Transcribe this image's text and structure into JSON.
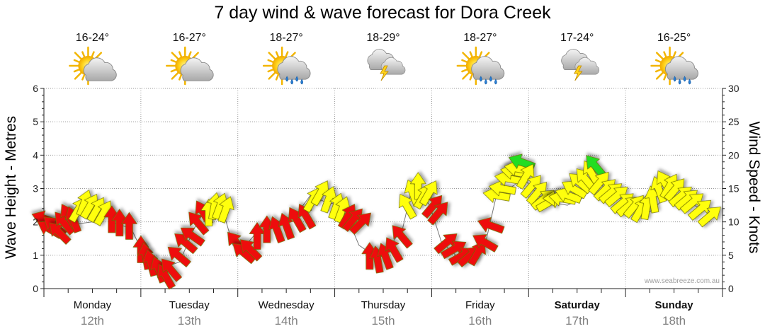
{
  "chart_data": {
    "type": "line",
    "title": "7 day wind & wave forecast for Dora Creek",
    "ylabel": "Wave Height - Metres",
    "y2label": "Wind Speed - Knots",
    "ylim": [
      0,
      6
    ],
    "y2lim": [
      0,
      30
    ],
    "yticks": [
      "0",
      "1",
      "2",
      "3",
      "4",
      "5",
      "6"
    ],
    "y2ticks": [
      "0",
      "5",
      "10",
      "15",
      "20",
      "25",
      "30"
    ],
    "watermark": "www.seabreeze.com.au",
    "grid": true,
    "days": [
      {
        "name": "Monday",
        "date": "12th",
        "temp": "16-24°",
        "icon": "sun-cloud-icon",
        "bold": false
      },
      {
        "name": "Tuesday",
        "date": "13th",
        "temp": "16-27°",
        "icon": "sun-cloud-icon",
        "bold": false
      },
      {
        "name": "Wednesday",
        "date": "14th",
        "temp": "18-27°",
        "icon": "sun-rain-icon",
        "bold": false
      },
      {
        "name": "Thursday",
        "date": "15th",
        "temp": "18-29°",
        "icon": "storm-icon",
        "bold": false
      },
      {
        "name": "Friday",
        "date": "16th",
        "temp": "18-27°",
        "icon": "sun-rain-icon",
        "bold": false
      },
      {
        "name": "Saturday",
        "date": "17th",
        "temp": "17-24°",
        "icon": "storm-icon",
        "bold": true
      },
      {
        "name": "Sunday",
        "date": "18th",
        "temp": "16-25°",
        "icon": "sun-rain-icon",
        "bold": true
      }
    ],
    "series": [
      {
        "kind": "wind-arrows",
        "color_scale": {
          "red": "#ee1111",
          "yellow": "#ffff11",
          "green": "#22dd22"
        },
        "points": [
          {
            "t": 0.0,
            "kn": 10.5,
            "dir": 200,
            "c": "red"
          },
          {
            "t": 0.05,
            "kn": 9.0,
            "dir": 210,
            "c": "red"
          },
          {
            "t": 0.1,
            "kn": 9.5,
            "dir": 220,
            "c": "red"
          },
          {
            "t": 0.15,
            "kn": 8.5,
            "dir": 225,
            "c": "red"
          },
          {
            "t": 0.2,
            "kn": 10.0,
            "dir": 230,
            "c": "red"
          },
          {
            "t": 0.25,
            "kn": 11.0,
            "dir": 240,
            "c": "red"
          },
          {
            "t": 0.3,
            "kn": 10.5,
            "dir": 250,
            "c": "red"
          },
          {
            "t": 0.36,
            "kn": 12.0,
            "dir": 300,
            "c": "yellow"
          },
          {
            "t": 0.42,
            "kn": 13.0,
            "dir": 290,
            "c": "yellow"
          },
          {
            "t": 0.48,
            "kn": 12.5,
            "dir": 300,
            "c": "yellow"
          },
          {
            "t": 0.55,
            "kn": 12.0,
            "dir": 300,
            "c": "yellow"
          },
          {
            "t": 0.62,
            "kn": 11.5,
            "dir": 300,
            "c": "yellow"
          },
          {
            "t": 0.7,
            "kn": 10.5,
            "dir": 270,
            "c": "red"
          },
          {
            "t": 0.78,
            "kn": 10.0,
            "dir": 270,
            "c": "red"
          },
          {
            "t": 0.88,
            "kn": 9.5,
            "dir": 270,
            "c": "red"
          },
          {
            "t": 1.0,
            "kn": 6.0,
            "dir": 270,
            "c": "red"
          },
          {
            "t": 1.05,
            "kn": 5.0,
            "dir": 260,
            "c": "red"
          },
          {
            "t": 1.1,
            "kn": 4.0,
            "dir": 255,
            "c": "red"
          },
          {
            "t": 1.18,
            "kn": 3.0,
            "dir": 250,
            "c": "red"
          },
          {
            "t": 1.25,
            "kn": 2.0,
            "dir": 240,
            "c": "red"
          },
          {
            "t": 1.3,
            "kn": 3.0,
            "dir": 230,
            "c": "red"
          },
          {
            "t": 1.38,
            "kn": 5.0,
            "dir": 220,
            "c": "red"
          },
          {
            "t": 1.45,
            "kn": 7.0,
            "dir": 220,
            "c": "red"
          },
          {
            "t": 1.52,
            "kn": 8.0,
            "dir": 215,
            "c": "red"
          },
          {
            "t": 1.58,
            "kn": 10.0,
            "dir": 230,
            "c": "red"
          },
          {
            "t": 1.64,
            "kn": 11.5,
            "dir": 240,
            "c": "red"
          },
          {
            "t": 1.7,
            "kn": 11.5,
            "dir": 270,
            "c": "yellow"
          },
          {
            "t": 1.76,
            "kn": 12.5,
            "dir": 280,
            "c": "yellow"
          },
          {
            "t": 1.82,
            "kn": 12.5,
            "dir": 290,
            "c": "yellow"
          },
          {
            "t": 1.88,
            "kn": 12.0,
            "dir": 290,
            "c": "yellow"
          },
          {
            "t": 1.98,
            "kn": 7.0,
            "dir": 230,
            "c": "red"
          },
          {
            "t": 2.05,
            "kn": 5.5,
            "dir": 220,
            "c": "red"
          },
          {
            "t": 2.12,
            "kn": 6.0,
            "dir": 225,
            "c": "red"
          },
          {
            "t": 2.2,
            "kn": 8.0,
            "dir": 270,
            "c": "red"
          },
          {
            "t": 2.3,
            "kn": 9.0,
            "dir": 270,
            "c": "red"
          },
          {
            "t": 2.4,
            "kn": 9.0,
            "dir": 250,
            "c": "red"
          },
          {
            "t": 2.5,
            "kn": 9.5,
            "dir": 250,
            "c": "red"
          },
          {
            "t": 2.6,
            "kn": 10.5,
            "dir": 240,
            "c": "red"
          },
          {
            "t": 2.7,
            "kn": 11.0,
            "dir": 240,
            "c": "red"
          },
          {
            "t": 2.78,
            "kn": 13.5,
            "dir": 300,
            "c": "yellow"
          },
          {
            "t": 2.86,
            "kn": 14.5,
            "dir": 300,
            "c": "yellow"
          },
          {
            "t": 2.94,
            "kn": 13.5,
            "dir": 290,
            "c": "yellow"
          },
          {
            "t": 3.02,
            "kn": 12.5,
            "dir": 290,
            "c": "yellow"
          },
          {
            "t": 3.08,
            "kn": 12.0,
            "dir": 290,
            "c": "yellow"
          },
          {
            "t": 3.14,
            "kn": 11.0,
            "dir": 300,
            "c": "red"
          },
          {
            "t": 3.2,
            "kn": 10.5,
            "dir": 310,
            "c": "red"
          },
          {
            "t": 3.28,
            "kn": 10.0,
            "dir": 315,
            "c": "red"
          },
          {
            "t": 3.36,
            "kn": 5.0,
            "dir": 270,
            "c": "red"
          },
          {
            "t": 3.44,
            "kn": 4.5,
            "dir": 260,
            "c": "red"
          },
          {
            "t": 3.52,
            "kn": 5.0,
            "dir": 250,
            "c": "red"
          },
          {
            "t": 3.6,
            "kn": 6.0,
            "dir": 240,
            "c": "red"
          },
          {
            "t": 3.68,
            "kn": 8.0,
            "dir": 230,
            "c": "red"
          },
          {
            "t": 3.74,
            "kn": 12.5,
            "dir": 240,
            "c": "yellow"
          },
          {
            "t": 3.8,
            "kn": 14.5,
            "dir": 250,
            "c": "yellow"
          },
          {
            "t": 3.86,
            "kn": 15.5,
            "dir": 270,
            "c": "yellow"
          },
          {
            "t": 3.92,
            "kn": 14.0,
            "dir": 300,
            "c": "yellow"
          },
          {
            "t": 3.98,
            "kn": 14.5,
            "dir": 300,
            "c": "yellow"
          },
          {
            "t": 4.02,
            "kn": 12.5,
            "dir": 310,
            "c": "red"
          },
          {
            "t": 4.08,
            "kn": 11.5,
            "dir": 310,
            "c": "red"
          },
          {
            "t": 4.16,
            "kn": 7.0,
            "dir": 320,
            "c": "red"
          },
          {
            "t": 4.24,
            "kn": 6.0,
            "dir": 330,
            "c": "red"
          },
          {
            "t": 4.32,
            "kn": 5.0,
            "dir": 330,
            "c": "red"
          },
          {
            "t": 4.4,
            "kn": 5.0,
            "dir": 320,
            "c": "red"
          },
          {
            "t": 4.48,
            "kn": 5.5,
            "dir": 300,
            "c": "red"
          },
          {
            "t": 4.54,
            "kn": 7.0,
            "dir": 210,
            "c": "red"
          },
          {
            "t": 4.6,
            "kn": 9.5,
            "dir": 200,
            "c": "red"
          },
          {
            "t": 4.66,
            "kn": 14.0,
            "dir": 190,
            "c": "yellow"
          },
          {
            "t": 4.72,
            "kn": 15.0,
            "dir": 190,
            "c": "yellow"
          },
          {
            "t": 4.78,
            "kn": 16.5,
            "dir": 190,
            "c": "yellow"
          },
          {
            "t": 4.84,
            "kn": 17.5,
            "dir": 190,
            "c": "yellow"
          },
          {
            "t": 4.88,
            "kn": 18.0,
            "dir": 190,
            "c": "yellow"
          },
          {
            "t": 4.92,
            "kn": 19.0,
            "dir": 200,
            "c": "green"
          },
          {
            "t": 4.98,
            "kn": 17.0,
            "dir": 300,
            "c": "yellow"
          },
          {
            "t": 5.04,
            "kn": 15.5,
            "dir": 310,
            "c": "yellow"
          },
          {
            "t": 5.1,
            "kn": 14.5,
            "dir": 310,
            "c": "yellow"
          },
          {
            "t": 5.16,
            "kn": 13.5,
            "dir": 320,
            "c": "yellow"
          },
          {
            "t": 5.22,
            "kn": 13.0,
            "dir": 330,
            "c": "yellow"
          },
          {
            "t": 5.28,
            "kn": 13.5,
            "dir": 180,
            "c": "yellow"
          },
          {
            "t": 5.34,
            "kn": 13.5,
            "dir": 190,
            "c": "yellow"
          },
          {
            "t": 5.4,
            "kn": 14.0,
            "dir": 200,
            "c": "yellow"
          },
          {
            "t": 5.46,
            "kn": 15.0,
            "dir": 210,
            "c": "yellow"
          },
          {
            "t": 5.52,
            "kn": 16.0,
            "dir": 220,
            "c": "yellow"
          },
          {
            "t": 5.58,
            "kn": 16.5,
            "dir": 230,
            "c": "yellow"
          },
          {
            "t": 5.64,
            "kn": 17.5,
            "dir": 240,
            "c": "yellow"
          },
          {
            "t": 5.68,
            "kn": 18.5,
            "dir": 230,
            "c": "green"
          },
          {
            "t": 5.74,
            "kn": 16.0,
            "dir": 310,
            "c": "yellow"
          },
          {
            "t": 5.8,
            "kn": 15.0,
            "dir": 315,
            "c": "yellow"
          },
          {
            "t": 5.86,
            "kn": 14.5,
            "dir": 320,
            "c": "yellow"
          },
          {
            "t": 5.92,
            "kn": 14.0,
            "dir": 320,
            "c": "yellow"
          },
          {
            "t": 5.98,
            "kn": 13.0,
            "dir": 320,
            "c": "yellow"
          },
          {
            "t": 6.04,
            "kn": 12.5,
            "dir": 320,
            "c": "yellow"
          },
          {
            "t": 6.1,
            "kn": 12.5,
            "dir": 310,
            "c": "yellow"
          },
          {
            "t": 6.16,
            "kn": 12.0,
            "dir": 300,
            "c": "yellow"
          },
          {
            "t": 6.22,
            "kn": 12.5,
            "dir": 280,
            "c": "yellow"
          },
          {
            "t": 6.28,
            "kn": 13.5,
            "dir": 260,
            "c": "yellow"
          },
          {
            "t": 6.34,
            "kn": 15.0,
            "dir": 250,
            "c": "yellow"
          },
          {
            "t": 6.4,
            "kn": 16.0,
            "dir": 240,
            "c": "yellow"
          },
          {
            "t": 6.46,
            "kn": 15.5,
            "dir": 300,
            "c": "yellow"
          },
          {
            "t": 6.52,
            "kn": 15.0,
            "dir": 310,
            "c": "yellow"
          },
          {
            "t": 6.58,
            "kn": 14.0,
            "dir": 320,
            "c": "yellow"
          },
          {
            "t": 6.64,
            "kn": 13.5,
            "dir": 320,
            "c": "yellow"
          },
          {
            "t": 6.7,
            "kn": 13.0,
            "dir": 320,
            "c": "yellow"
          },
          {
            "t": 6.78,
            "kn": 12.0,
            "dir": 320,
            "c": "yellow"
          },
          {
            "t": 6.88,
            "kn": 11.0,
            "dir": 320,
            "c": "yellow"
          }
        ]
      },
      {
        "kind": "wave-line",
        "color": "#777777",
        "points": [
          [
            0.0,
            1.8
          ],
          [
            0.5,
            2.0
          ],
          [
            0.6,
            2.6
          ],
          [
            0.7,
            2.0
          ],
          [
            0.9,
            1.8
          ],
          [
            1.0,
            1.2
          ],
          [
            1.2,
            0.6
          ],
          [
            1.4,
            0.8
          ],
          [
            1.55,
            1.8
          ],
          [
            1.65,
            2.3
          ],
          [
            1.85,
            2.3
          ],
          [
            1.95,
            1.3
          ],
          [
            2.05,
            1.2
          ],
          [
            2.2,
            1.7
          ],
          [
            2.4,
            2.0
          ],
          [
            2.6,
            2.2
          ],
          [
            2.75,
            2.8
          ],
          [
            2.9,
            2.6
          ],
          [
            3.05,
            2.5
          ],
          [
            3.15,
            2.0
          ],
          [
            3.25,
            1.3
          ],
          [
            3.4,
            1.0
          ],
          [
            3.55,
            1.2
          ],
          [
            3.7,
            1.8
          ],
          [
            3.78,
            2.8
          ],
          [
            3.9,
            2.8
          ],
          [
            3.98,
            2.5
          ],
          [
            4.1,
            1.4
          ],
          [
            4.25,
            1.0
          ],
          [
            4.45,
            1.0
          ],
          [
            4.55,
            1.3
          ],
          [
            4.66,
            2.7
          ],
          [
            4.8,
            3.0
          ],
          [
            4.95,
            3.3
          ],
          [
            5.1,
            2.8
          ],
          [
            5.2,
            2.6
          ],
          [
            5.4,
            2.5
          ],
          [
            5.55,
            2.7
          ],
          [
            5.7,
            3.2
          ],
          [
            5.8,
            3.0
          ],
          [
            5.95,
            2.7
          ],
          [
            6.1,
            2.4
          ],
          [
            6.25,
            2.3
          ],
          [
            6.4,
            2.7
          ],
          [
            6.55,
            2.7
          ],
          [
            6.7,
            2.5
          ],
          [
            6.9,
            2.3
          ]
        ]
      }
    ]
  }
}
